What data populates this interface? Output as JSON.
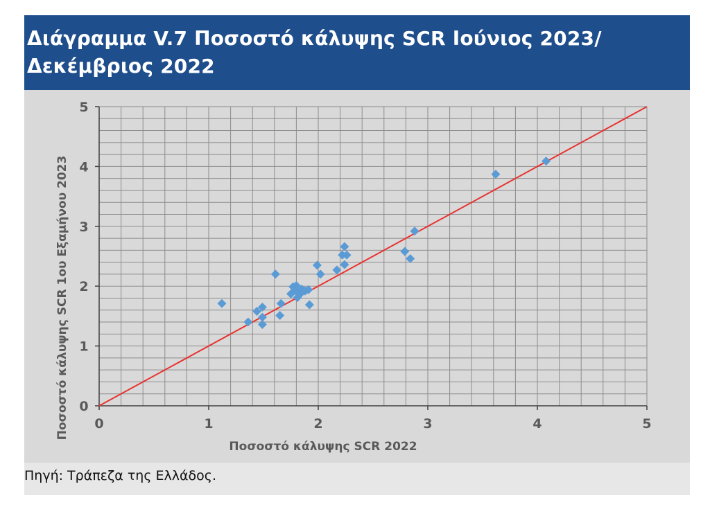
{
  "header": {
    "title": "Διάγραμμα V.7 Ποσοστό κάλυψης SCR Ιούνιος 2023/\nΔεκέμβριος 2022"
  },
  "source": {
    "text": "Πηγή: Τράπεζα της Ελλάδος."
  },
  "colors": {
    "header_bg": "#1f4e8c",
    "plot_bg": "#d9d9d9",
    "grid": "#8c8c8c",
    "marker": "#5b9bd5",
    "diagonal": "#e8322f",
    "axis_text": "#595959"
  },
  "chart_data": {
    "type": "scatter",
    "xlabel": "Ποσοστό κάλυψης SCR 2022",
    "ylabel": "Ποσοστό κάλυψης SCR 1ου Εξαμήνου 2023",
    "xlim": [
      0,
      5
    ],
    "ylim": [
      0,
      5
    ],
    "x_ticks": [
      "0",
      "1",
      "2",
      "3",
      "4",
      "5"
    ],
    "y_ticks": [
      "0",
      "1",
      "2",
      "3",
      "4",
      "5"
    ],
    "grid": true,
    "minor_grid_step_x": 0.2,
    "minor_grid_step_y": 0.2,
    "reference_line": {
      "from": [
        0,
        0
      ],
      "to": [
        5,
        5
      ]
    },
    "points": [
      {
        "x": 1.12,
        "y": 1.71
      },
      {
        "x": 1.36,
        "y": 1.4
      },
      {
        "x": 1.44,
        "y": 1.58
      },
      {
        "x": 1.49,
        "y": 1.36
      },
      {
        "x": 1.49,
        "y": 1.48
      },
      {
        "x": 1.49,
        "y": 1.65
      },
      {
        "x": 1.61,
        "y": 2.2
      },
      {
        "x": 1.65,
        "y": 1.51
      },
      {
        "x": 1.66,
        "y": 1.71
      },
      {
        "x": 1.75,
        "y": 1.87
      },
      {
        "x": 1.77,
        "y": 1.99
      },
      {
        "x": 1.79,
        "y": 1.93
      },
      {
        "x": 1.8,
        "y": 2.01
      },
      {
        "x": 1.81,
        "y": 1.81
      },
      {
        "x": 1.83,
        "y": 1.86
      },
      {
        "x": 1.85,
        "y": 1.95
      },
      {
        "x": 1.88,
        "y": 1.92
      },
      {
        "x": 1.91,
        "y": 1.94
      },
      {
        "x": 1.92,
        "y": 1.69
      },
      {
        "x": 1.99,
        "y": 2.35
      },
      {
        "x": 2.02,
        "y": 2.2
      },
      {
        "x": 2.17,
        "y": 2.27
      },
      {
        "x": 2.22,
        "y": 2.52
      },
      {
        "x": 2.24,
        "y": 2.66
      },
      {
        "x": 2.24,
        "y": 2.36
      },
      {
        "x": 2.26,
        "y": 2.52
      },
      {
        "x": 2.79,
        "y": 2.58
      },
      {
        "x": 2.84,
        "y": 2.46
      },
      {
        "x": 2.88,
        "y": 2.92
      },
      {
        "x": 3.62,
        "y": 3.87
      },
      {
        "x": 4.08,
        "y": 4.09
      }
    ]
  }
}
